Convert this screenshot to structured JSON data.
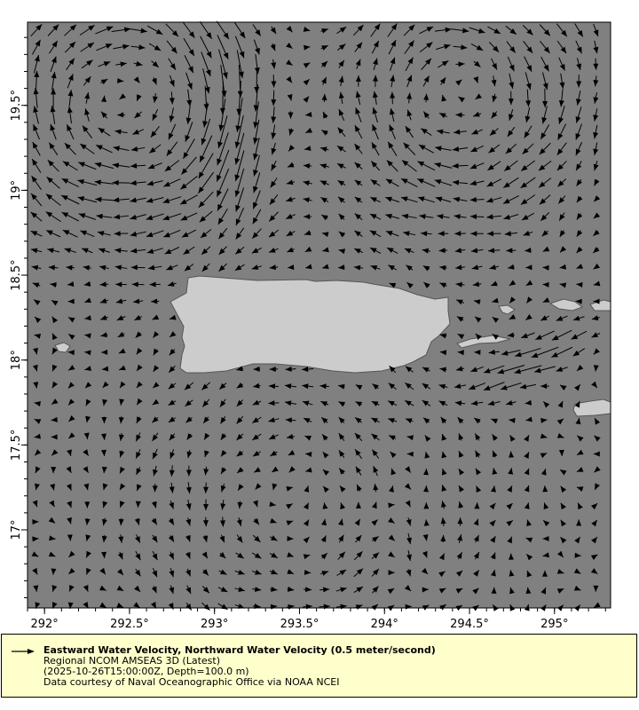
{
  "chart_data": {
    "type": "vector-field",
    "xlim": [
      291.9,
      295.33
    ],
    "ylim": [
      16.54,
      19.99
    ],
    "x_ticks": [
      "292°",
      "292.5°",
      "293°",
      "293.5°",
      "294°",
      "294.5°",
      "295°"
    ],
    "x_tick_values": [
      292,
      292.5,
      293,
      293.5,
      294,
      294.5,
      295
    ],
    "y_ticks": [
      "17°",
      "17.5°",
      "18°",
      "18.5°",
      "19°",
      "19.5°"
    ],
    "y_tick_values": [
      17,
      17.5,
      18,
      18.5,
      19,
      19.5
    ],
    "reference_vector_speed": 0.5,
    "grid": false
  },
  "legend": {
    "title": "Eastward Water Velocity, Northward Water Velocity (0.5 meter/second)",
    "dataset": "Regional NCOM AMSEAS 3D (Latest)",
    "time_depth": "(2025-10-26T15:00:00Z, Depth=100.0 m)",
    "credit": "Data courtesy of Naval Oceanographic Office via NOAA NCEI"
  },
  "colors": {
    "ocean": "#808080",
    "land": "#cccccc",
    "arrow": "#000000",
    "legend_bg": "#ffffcc"
  }
}
